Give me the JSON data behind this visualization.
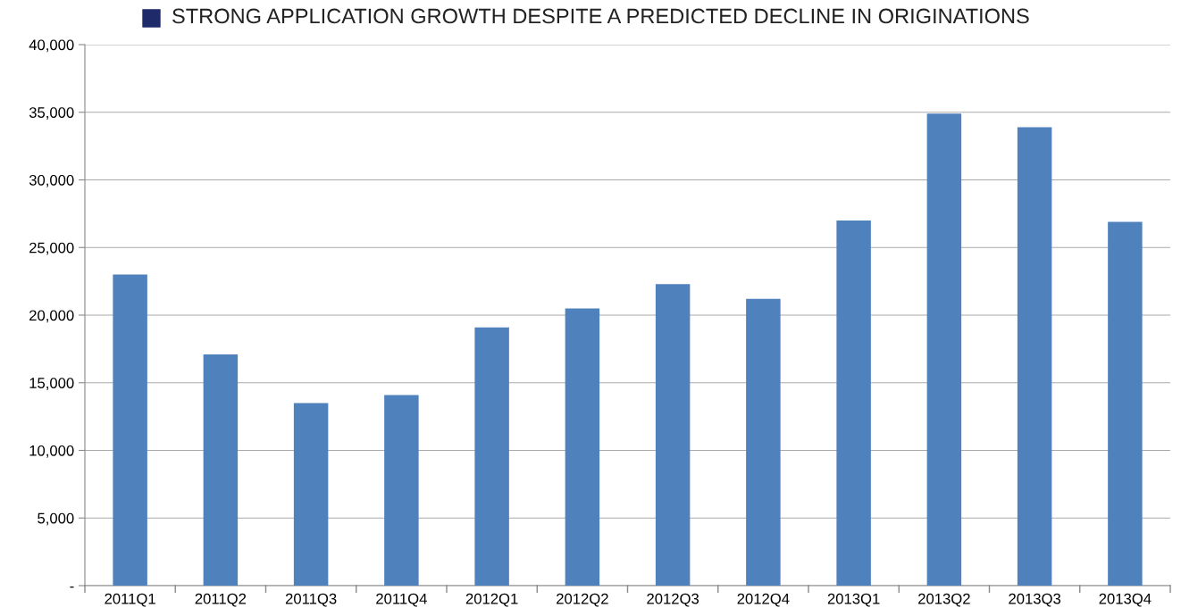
{
  "chart_data": {
    "type": "bar",
    "title": "STRONG APPLICATION GROWTH DESPITE A PREDICTED DECLINE IN ORIGINATIONS",
    "categories": [
      "2011Q1",
      "2011Q2",
      "2011Q3",
      "2011Q4",
      "2012Q1",
      "2012Q2",
      "2012Q3",
      "2012Q4",
      "2013Q1",
      "2013Q2",
      "2013Q3",
      "2013Q4"
    ],
    "values": [
      23000,
      17100,
      13500,
      14100,
      19100,
      20500,
      22300,
      21200,
      27000,
      34900,
      33900,
      26900
    ],
    "color": "#4f81bd",
    "ylim": [
      0,
      40000
    ],
    "yticks": [
      {
        "value": 0,
        "label": "-"
      },
      {
        "value": 5000,
        "label": "5,000"
      },
      {
        "value": 10000,
        "label": "10,000"
      },
      {
        "value": 15000,
        "label": "15,000"
      },
      {
        "value": 20000,
        "label": "20,000"
      },
      {
        "value": 25000,
        "label": "25,000"
      },
      {
        "value": 30000,
        "label": "30,000"
      },
      {
        "value": 35000,
        "label": "35,000"
      },
      {
        "value": 40000,
        "label": "40,000"
      }
    ],
    "grid": "y"
  }
}
